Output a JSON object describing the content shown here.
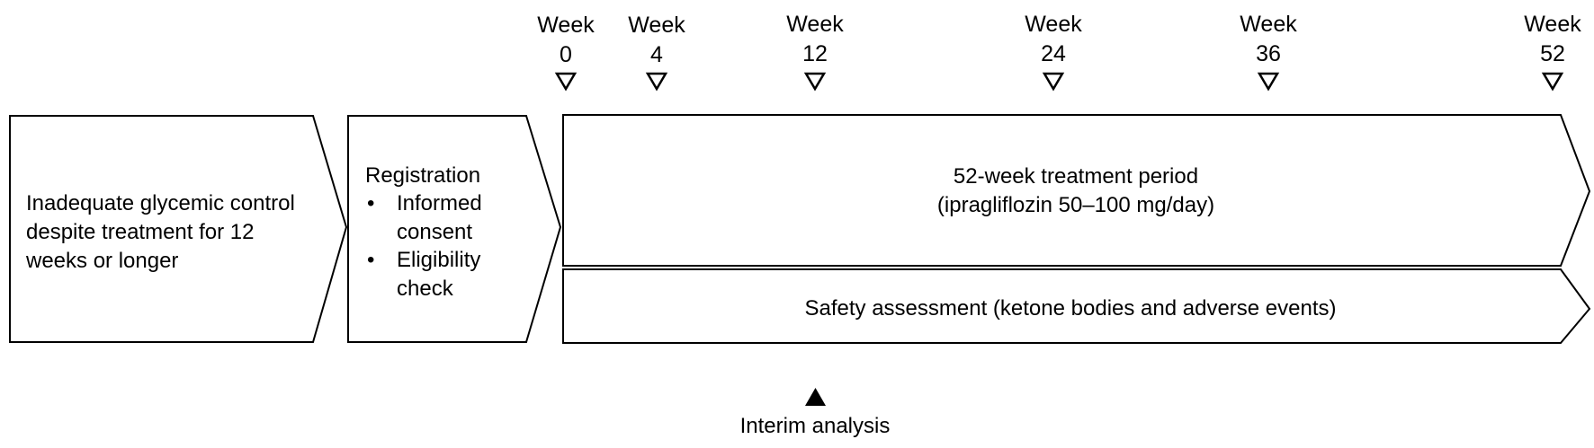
{
  "weeks": [
    {
      "word": "Week",
      "num": "0"
    },
    {
      "word": "Week",
      "num": "4"
    },
    {
      "word": "Week",
      "num": "12"
    },
    {
      "word": "Week",
      "num": "24"
    },
    {
      "word": "Week",
      "num": "36"
    },
    {
      "word": "Week",
      "num": "52"
    }
  ],
  "boxes": {
    "condition": {
      "lines": [
        "Inadequate glycemic control",
        "despite treatment for 12",
        "weeks or longer"
      ]
    },
    "registration": {
      "title": "Registration",
      "bullet": "•",
      "items": [
        {
          "line1": "Informed",
          "line2": "consent"
        },
        {
          "line1": "Eligibility",
          "line2": "check"
        }
      ]
    },
    "treatment": {
      "line1": "52-week treatment period",
      "line2": "(ipragliflozin 50–100 mg/day)"
    },
    "safety": {
      "label": "Safety assessment (ketone bodies and adverse events)"
    }
  },
  "interim": {
    "label": "Interim analysis",
    "week": "12"
  }
}
